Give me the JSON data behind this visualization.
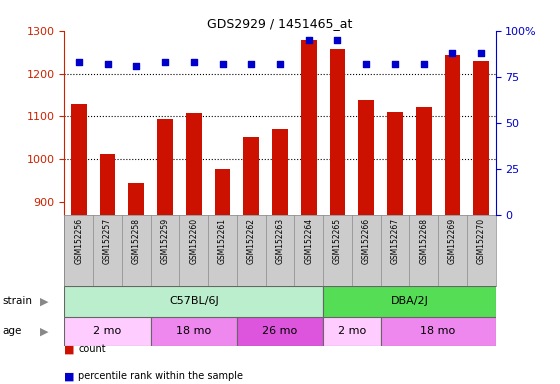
{
  "title": "GDS2929 / 1451465_at",
  "samples": [
    "GSM152256",
    "GSM152257",
    "GSM152258",
    "GSM152259",
    "GSM152260",
    "GSM152261",
    "GSM152262",
    "GSM152263",
    "GSM152264",
    "GSM152265",
    "GSM152266",
    "GSM152267",
    "GSM152268",
    "GSM152269",
    "GSM152270"
  ],
  "counts": [
    1128,
    1012,
    945,
    1093,
    1108,
    978,
    1053,
    1070,
    1278,
    1258,
    1138,
    1110,
    1123,
    1243,
    1230
  ],
  "percentile": [
    83,
    82,
    81,
    83,
    83,
    82,
    82,
    82,
    95,
    95,
    82,
    82,
    82,
    88,
    88
  ],
  "ylim_left": [
    870,
    1300
  ],
  "ylim_right": [
    0,
    100
  ],
  "yticks_left": [
    900,
    1000,
    1100,
    1200,
    1300
  ],
  "yticks_right": [
    0,
    25,
    50,
    75,
    100
  ],
  "bar_color": "#cc1100",
  "dot_color": "#0000cc",
  "strain_groups": [
    {
      "label": "C57BL/6J",
      "start": 0,
      "end": 9,
      "color": "#bbeecc"
    },
    {
      "label": "DBA/2J",
      "start": 9,
      "end": 15,
      "color": "#55dd55"
    }
  ],
  "age_groups": [
    {
      "label": "2 mo",
      "start": 0,
      "end": 3,
      "color": "#ffccff"
    },
    {
      "label": "18 mo",
      "start": 3,
      "end": 6,
      "color": "#ee88ee"
    },
    {
      "label": "26 mo",
      "start": 6,
      "end": 9,
      "color": "#dd55dd"
    },
    {
      "label": "2 mo",
      "start": 9,
      "end": 11,
      "color": "#ffccff"
    },
    {
      "label": "18 mo",
      "start": 11,
      "end": 15,
      "color": "#ee88ee"
    }
  ],
  "left_axis_color": "#cc2200",
  "right_axis_color": "#0000cc",
  "grid_color": "#555555"
}
